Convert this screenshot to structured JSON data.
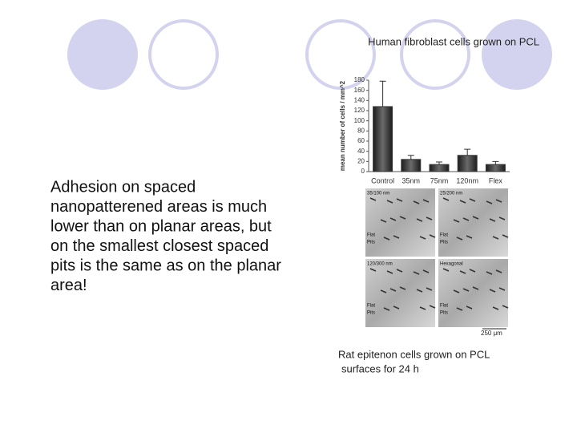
{
  "slide": {
    "caption_top": "Human fibroblast cells grown on PCL",
    "body": [
      "Adhesion on spaced",
      "nanopatterened areas is much",
      "lower than on planar areas, but",
      "on the smallest closest spaced",
      "pits is the same as on the planar",
      "area!"
    ],
    "caption_bottom": [
      "Rat epitenon cells grown on PCL",
      "surfaces for 24 h"
    ],
    "panels": [
      {
        "labels": [
          "35/100 nm",
          "Flat",
          "Pits"
        ]
      },
      {
        "labels": [
          "25/200 nm",
          "Flat",
          "Pits"
        ]
      },
      {
        "labels": [
          "120/300 nm",
          "Flat",
          "Pits"
        ]
      },
      {
        "labels": [
          "Hexagonal",
          "Flat",
          "Pits"
        ]
      }
    ],
    "scale_bar": "250 μm"
  },
  "chart_data": {
    "type": "bar",
    "y_label": "mean number of cells / mm^2",
    "categories": [
      "Control",
      "35nm",
      "75nm",
      "120nm",
      "Flex"
    ],
    "values": [
      128,
      24,
      14,
      32,
      14
    ],
    "errors": [
      50,
      8,
      5,
      12,
      6
    ],
    "color": "#3a3a3a",
    "ylim": [
      0,
      180
    ],
    "yticks": [
      0,
      20,
      40,
      60,
      80,
      100,
      120,
      140,
      160,
      180
    ]
  }
}
